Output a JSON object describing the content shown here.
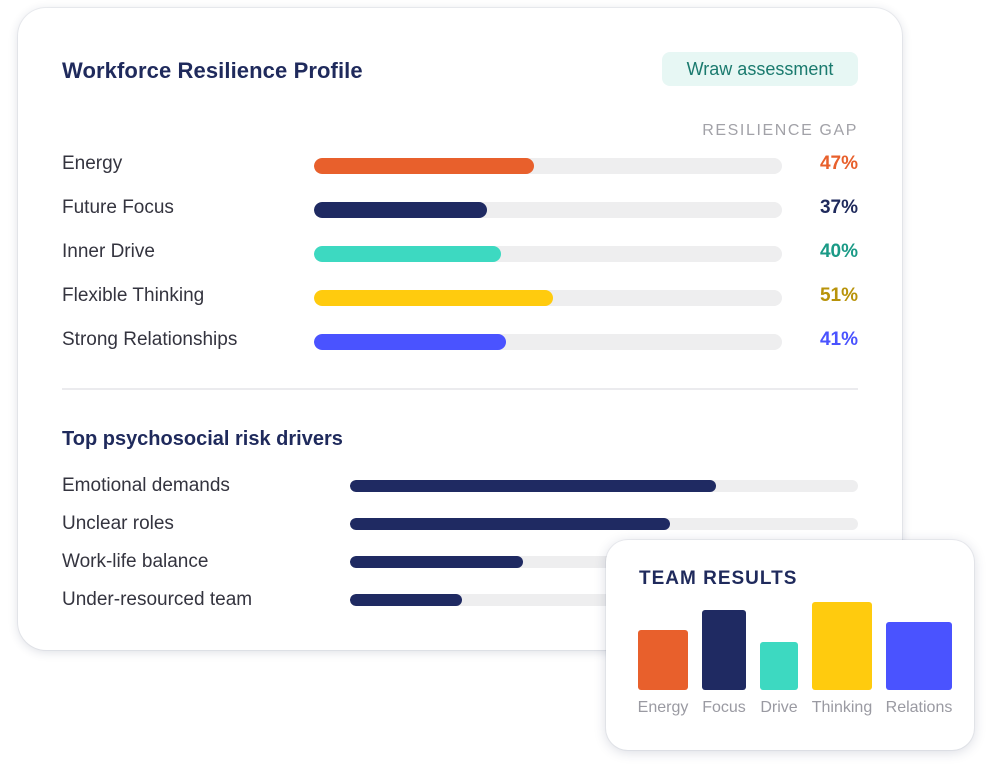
{
  "profile": {
    "title": "Workforce Resilience Profile",
    "badge": "Wraw assessment",
    "gap_header": "RESILIENCE GAP",
    "items": [
      {
        "label": "Energy",
        "value": 47,
        "value_label": "47%",
        "color": "#e8602c",
        "text_color": "#e8602c"
      },
      {
        "label": "Future Focus",
        "value": 37,
        "value_label": "37%",
        "color": "#1f2a62",
        "text_color": "#1f2a5c"
      },
      {
        "label": "Inner Drive",
        "value": 40,
        "value_label": "40%",
        "color": "#3dd9c1",
        "text_color": "#1a9a86"
      },
      {
        "label": "Flexible Thinking",
        "value": 51,
        "value_label": "51%",
        "color": "#ffcb0e",
        "text_color": "#b8930a"
      },
      {
        "label": "Strong Relationships",
        "value": 41,
        "value_label": "41%",
        "color": "#4a53ff",
        "text_color": "#4a53ff"
      }
    ]
  },
  "risk": {
    "title": "Top psychosocial risk drivers",
    "items": [
      {
        "label": "Emotional demands",
        "value": 0.72
      },
      {
        "label": "Unclear roles",
        "value": 0.63
      },
      {
        "label": "Work-life balance",
        "value": 0.34
      },
      {
        "label": "Under-resourced team",
        "value": 0.22
      }
    ]
  },
  "team": {
    "title": "TEAM RESULTS",
    "chart_data": {
      "type": "bar",
      "categories": [
        "Energy",
        "Focus",
        "Drive",
        "Thinking",
        "Relations"
      ],
      "values": [
        60,
        80,
        48,
        88,
        68
      ],
      "colors": [
        "#e8602c",
        "#1f2a62",
        "#3dd9c1",
        "#ffcb0e",
        "#4a53ff"
      ],
      "ylim": [
        0,
        100
      ]
    }
  }
}
